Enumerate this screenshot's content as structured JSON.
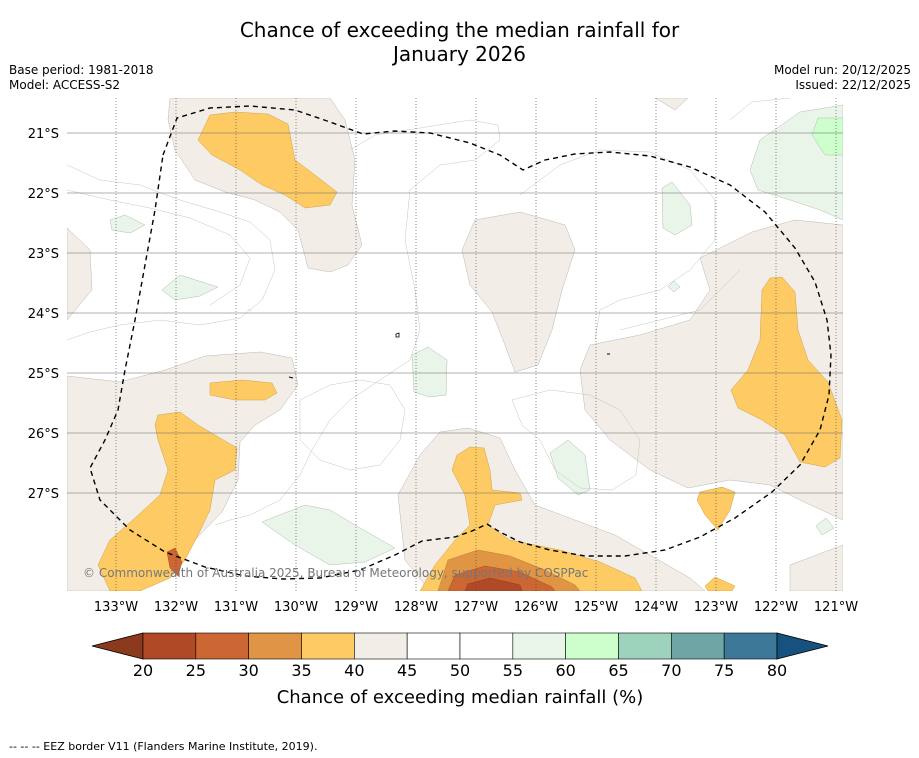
{
  "title_line1": "Chance of exceeding the median rainfall for",
  "title_line2": "January 2026",
  "meta_left": {
    "base_period": "Base period: 1981-2018",
    "model": "Model: ACCESS-S2"
  },
  "meta_right": {
    "model_run": "Model run: 20/12/2025",
    "issued": "Issued: 22/12/2025"
  },
  "map": {
    "lon_labels": [
      "133°W",
      "132°W",
      "131°W",
      "130°W",
      "129°W",
      "128°W",
      "127°W",
      "126°W",
      "125°W",
      "124°W",
      "123°W",
      "122°W",
      "121°W"
    ],
    "lat_labels": [
      "21°S",
      "22°S",
      "23°S",
      "24°S",
      "25°S",
      "26°S",
      "27°S"
    ],
    "copyright": "© Commonwealth of Australia 2025, Bureau of Meteorology, supported by COSPPac"
  },
  "legend": {
    "ticks": [
      "20",
      "25",
      "30",
      "35",
      "40",
      "45",
      "50",
      "55",
      "60",
      "65",
      "70",
      "75",
      "80"
    ],
    "label": "Chance of exceeding median rainfall (%)",
    "colors": [
      "#8c3a1e",
      "#b04a26",
      "#cc6633",
      "#e09544",
      "#fdca63",
      "#f2ede6",
      "#ffffff",
      "#ffffff",
      "#e8f5e8",
      "#ccffcc",
      "#9dd3bd",
      "#6ea5a5",
      "#3e7898",
      "#17527f"
    ]
  },
  "footnote": "--  --  -- EEZ border V11 (Flanders Marine Institute, 2019)."
}
